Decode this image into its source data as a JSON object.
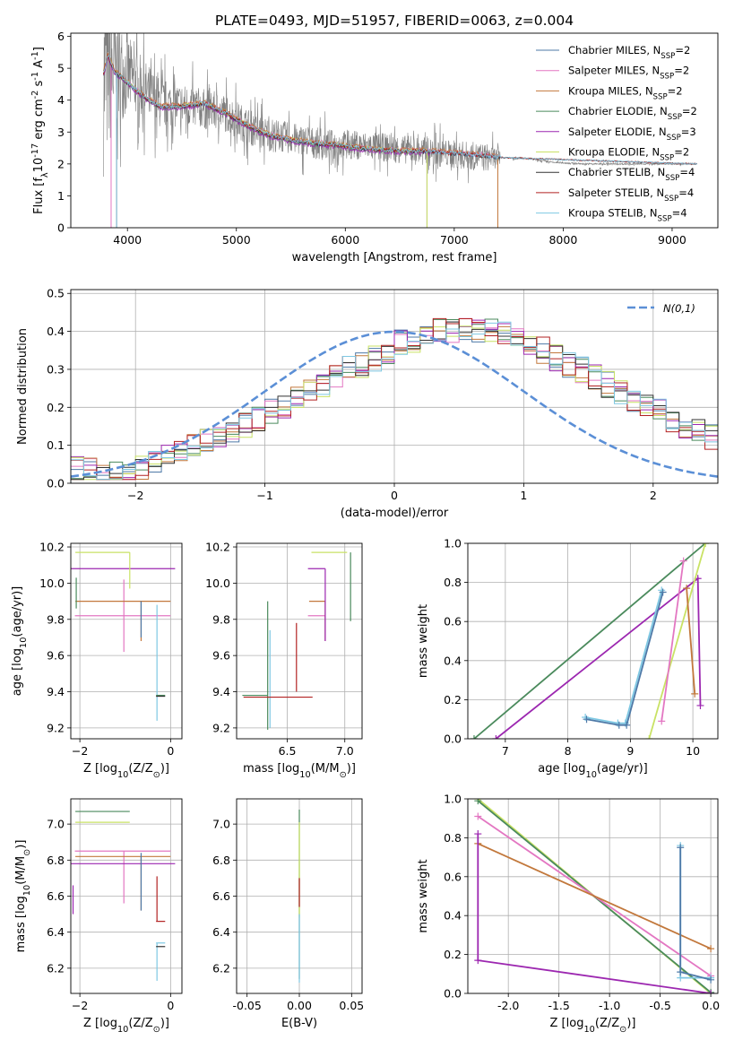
{
  "figure": {
    "title": "PLATE=0493, MJD=51957, FIBERID=0063, z=0.004"
  },
  "chart_data": [
    {
      "id": "spectrum",
      "type": "line",
      "title": "PLATE=0493, MJD=51957, FIBERID=0063, z=0.004",
      "xlabel": "wavelength [Angstrom, rest frame]",
      "ylabel": "Flux [f$_\\lambda$10$^{-17}$ erg cm$^{-2}$ s$^{-1}$ A$^{-1}$]",
      "xlim": [
        3480,
        9420
      ],
      "ylim": [
        0,
        6.1
      ],
      "xticks": [
        4000,
        5000,
        6000,
        7000,
        8000,
        9000
      ],
      "yticks": [
        0,
        1,
        2,
        3,
        4,
        5,
        6
      ],
      "grid": false,
      "legend_position": "top-right",
      "data_color": "#808080",
      "data_envelope": {
        "x": [
          3780,
          3850,
          3950,
          4100,
          4300,
          4600,
          4900,
          5200,
          5500,
          5800,
          6100,
          6400,
          6700,
          7000,
          7300,
          7600,
          7900,
          8200,
          8500,
          8800,
          9100,
          9230
        ],
        "y": [
          4.6,
          4.9,
          4.9,
          4.5,
          3.9,
          3.8,
          3.6,
          3.0,
          2.8,
          2.6,
          2.6,
          2.5,
          2.4,
          2.3,
          2.2,
          2.2,
          2.05,
          2.0,
          2.0,
          2.0,
          2.0,
          2.0
        ],
        "noise_amplitude": [
          6.0,
          4.5,
          3.0,
          2.0,
          1.6,
          1.3,
          1.2,
          1.1,
          1.0,
          1.0,
          0.9,
          0.9,
          0.9,
          0.9,
          0.9,
          0.05,
          0.05,
          0.05,
          0.05,
          0.05,
          0.05,
          0.05
        ],
        "split_at": 7420
      },
      "model_envelope": {
        "x": [
          3780,
          3820,
          3880,
          3950,
          4050,
          4150,
          4300,
          4500,
          4700,
          4900,
          5100,
          5300,
          5500,
          5700,
          5900,
          6100,
          6300,
          6500,
          6700,
          6900,
          7100,
          7300,
          7400
        ],
        "y": [
          4.8,
          5.4,
          4.9,
          4.7,
          4.4,
          4.1,
          3.8,
          3.8,
          3.9,
          3.6,
          3.2,
          2.9,
          2.75,
          2.65,
          2.6,
          2.5,
          2.45,
          2.4,
          2.4,
          2.35,
          2.3,
          2.25,
          2.2
        ]
      },
      "series": [
        {
          "name": "Chabrier MILES, N$_{SSP}$=2",
          "color": "#4e79a7",
          "offset": 0.0,
          "cutoff": 3900,
          "xmax": 7410
        },
        {
          "name": "Salpeter MILES, N$_{SSP}$=2",
          "color": "#e377c2",
          "offset": 0.04,
          "cutoff": 3850,
          "xmax": 7410
        },
        {
          "name": "Kroupa MILES, N$_{SSP}$=2",
          "color": "#c2783c",
          "offset": 0.06,
          "cutoff": 7400,
          "xmax": 7410
        },
        {
          "name": "Chabrier ELODIE, N$_{SSP}$=2",
          "color": "#4a8a5c",
          "offset": -0.03,
          "cutoff": 6750,
          "xmax": 6780
        },
        {
          "name": "Salpeter ELODIE, N$_{SSP}$=3",
          "color": "#9c27b0",
          "offset": -0.06,
          "cutoff": 6750,
          "xmax": 6780
        },
        {
          "name": "Kroupa ELODIE, N$_{SSP}$=2",
          "color": "#c9e265",
          "offset": 0.02,
          "cutoff": 6750,
          "xmax": 6780
        },
        {
          "name": "Chabrier STELIB, N$_{SSP}$=4",
          "color": "#333333",
          "offset": 0.0,
          "cutoff": 3900,
          "xmax": 9230
        },
        {
          "name": "Salpeter STELIB, N$_{SSP}$=4",
          "color": "#b22222",
          "offset": 0.01,
          "cutoff": 3900,
          "xmax": 9230
        },
        {
          "name": "Kroupa STELIB, N$_{SSP}$=4",
          "color": "#7ec8e3",
          "offset": 0.02,
          "cutoff": 3900,
          "xmax": 9230
        }
      ]
    },
    {
      "id": "residuals",
      "type": "histogram",
      "xlabel": "(data-model)/error",
      "ylabel": "Normed distribution",
      "xlim": [
        -2.5,
        2.5
      ],
      "ylim": [
        0,
        0.51
      ],
      "xticks": [
        -2,
        -1,
        0,
        1,
        2
      ],
      "yticks": [
        0.0,
        0.1,
        0.2,
        0.3,
        0.4,
        0.5
      ],
      "grid": true,
      "legend_position": "top-right",
      "gaussian": {
        "name": "$\\mathcal{N}(0,1)$",
        "mean": 0,
        "sigma": 1,
        "color": "#5b8fd6"
      },
      "bin_width": 0.1,
      "bin_start": -2.5,
      "base_counts": [
        0.04,
        0.04,
        0.03,
        0.03,
        0.03,
        0.04,
        0.05,
        0.07,
        0.09,
        0.1,
        0.11,
        0.12,
        0.14,
        0.15,
        0.17,
        0.19,
        0.2,
        0.22,
        0.24,
        0.26,
        0.28,
        0.3,
        0.31,
        0.33,
        0.35,
        0.37,
        0.38,
        0.39,
        0.4,
        0.4,
        0.4,
        0.4,
        0.4,
        0.39,
        0.38,
        0.37,
        0.35,
        0.33,
        0.31,
        0.3,
        0.28,
        0.26,
        0.24,
        0.22,
        0.2,
        0.19,
        0.17,
        0.15,
        0.14,
        0.12
      ]
    },
    {
      "id": "age-vs-z",
      "type": "errorbar",
      "xlabel": "Z [log$_{10}$(Z/Z$_\\odot$)]",
      "ylabel": "age  [log$_{10}$(age/yr)]",
      "xlim": [
        -2.2,
        0.25
      ],
      "ylim": [
        9.14,
        10.22
      ],
      "xticks": [
        -2,
        0
      ],
      "yticks": [
        9.2,
        9.4,
        9.6,
        9.8,
        10.0,
        10.2
      ],
      "grid": true,
      "points": [
        {
          "x": -1.03,
          "y": 9.82,
          "xerr": [
            1.08,
            1.03
          ],
          "yerr": [
            0.2,
            0.2
          ],
          "color": "#e377c2"
        },
        {
          "x": -0.65,
          "y": 9.9,
          "xerr": [
            1.45,
            0.65
          ],
          "yerr": [
            0.22,
            0.0
          ],
          "color": "#c2783c"
        },
        {
          "x": -0.65,
          "y": 9.88,
          "xerr": [
            0.0,
            0.0
          ],
          "yerr": [
            0.18,
            0.02
          ],
          "color": "#4e79a7"
        },
        {
          "x": -0.3,
          "y": 9.88,
          "xerr": [
            0.0,
            0.0
          ],
          "yerr": [
            0.64,
            0.0
          ],
          "color": "#7ec8e3"
        },
        {
          "x": -0.1,
          "y": 10.08,
          "xerr": [
            2.1,
            0.2
          ],
          "yerr": [
            0.0,
            0.0
          ],
          "color": "#9c27b0"
        },
        {
          "x": -0.9,
          "y": 10.17,
          "xerr": [
            1.2,
            0.0
          ],
          "yerr": [
            0.2,
            0.0
          ],
          "color": "#c9e265"
        },
        {
          "x": -0.12,
          "y": 9.38,
          "xerr": [
            0.2,
            0.0
          ],
          "yerr": [
            0.0,
            0.0
          ],
          "color": "#4a8a5c"
        },
        {
          "x": -0.12,
          "y": 9.375,
          "xerr": [
            0.2,
            0.0
          ],
          "yerr": [
            0.0,
            0.0
          ],
          "color": "#333333"
        },
        {
          "x": -2.08,
          "y": 9.88,
          "xerr": [
            0.0,
            0.0
          ],
          "yerr": [
            0.02,
            0.15
          ],
          "color": "#4a8a5c"
        }
      ]
    },
    {
      "id": "age-vs-mass",
      "type": "errorbar",
      "xlabel": "mass [log$_{10}$(M/M$_\\odot$)]",
      "ylabel": "",
      "xlim": [
        6.06,
        7.15
      ],
      "ylim": [
        9.14,
        10.22
      ],
      "xticks": [
        6.5,
        7.0
      ],
      "yticks": [
        9.2,
        9.4,
        9.6,
        9.8,
        10.0,
        10.2
      ],
      "grid": true,
      "points": [
        {
          "x": 6.33,
          "y": 9.38,
          "xerr": [
            0.22,
            0.0
          ],
          "yerr": [
            0.19,
            0.52
          ],
          "color": "#4a8a5c"
        },
        {
          "x": 6.35,
          "y": 9.38,
          "xerr": [
            0.0,
            0.0
          ],
          "yerr": [
            0.18,
            0.36
          ],
          "color": "#7ec8e3"
        },
        {
          "x": 6.4,
          "y": 9.37,
          "xerr": [
            0.28,
            0.32
          ],
          "yerr": [
            0.0,
            0.0
          ],
          "color": "#b22222"
        },
        {
          "x": 6.58,
          "y": 9.6,
          "xerr": [
            0.0,
            0.0
          ],
          "yerr": [
            0.2,
            0.18
          ],
          "color": "#b22222"
        },
        {
          "x": 6.83,
          "y": 9.82,
          "xerr": [
            0.15,
            0.0
          ],
          "yerr": [
            0.14,
            0.0
          ],
          "color": "#e377c2"
        },
        {
          "x": 6.83,
          "y": 9.9,
          "xerr": [
            0.14,
            0.0
          ],
          "yerr": [
            0.22,
            0.0
          ],
          "color": "#c2783c"
        },
        {
          "x": 6.83,
          "y": 10.08,
          "xerr": [
            0.15,
            0.0
          ],
          "yerr": [
            0.4,
            0.0
          ],
          "color": "#9c27b0"
        },
        {
          "x": 7.02,
          "y": 10.17,
          "xerr": [
            0.31,
            0.0
          ],
          "yerr": [
            0.0,
            0.0
          ],
          "color": "#c9e265"
        },
        {
          "x": 7.05,
          "y": 10.17,
          "xerr": [
            0.0,
            0.0
          ],
          "yerr": [
            0.38,
            0.0
          ],
          "color": "#4a8a5c"
        }
      ]
    },
    {
      "id": "weight-vs-age",
      "type": "line",
      "xlabel": "age  [log$_{10}$(age/yr)]",
      "ylabel": "mass weight",
      "xlim": [
        6.4,
        10.4
      ],
      "ylim": [
        0,
        1.0
      ],
      "xticks": [
        7,
        8,
        9,
        10
      ],
      "yticks": [
        0.0,
        0.2,
        0.4,
        0.6,
        0.8,
        1.0
      ],
      "grid": true,
      "series": [
        {
          "color": "#4a8a5c",
          "x": [
            6.5,
            10.2
          ],
          "y": [
            0.0,
            1.0
          ]
        },
        {
          "color": "#9c27b0",
          "x": [
            6.85,
            10.08,
            10.12
          ],
          "y": [
            0.0,
            0.82,
            0.17
          ]
        },
        {
          "color": "#c9e265",
          "x": [
            9.3,
            10.2
          ],
          "y": [
            0.0,
            1.0
          ]
        },
        {
          "color": "#e377c2",
          "x": [
            9.5,
            9.85
          ],
          "y": [
            0.09,
            0.91
          ]
        },
        {
          "color": "#c2783c",
          "x": [
            9.9,
            10.03
          ],
          "y": [
            0.77,
            0.23
          ]
        },
        {
          "color": "#7ec8e3",
          "x": [
            8.28,
            8.8,
            8.92,
            9.5
          ],
          "y": [
            0.11,
            0.08,
            0.08,
            0.76
          ]
        },
        {
          "color": "#4e79a7",
          "x": [
            8.3,
            8.82,
            8.94,
            9.52
          ],
          "y": [
            0.1,
            0.07,
            0.07,
            0.75
          ]
        }
      ]
    },
    {
      "id": "mass-vs-z",
      "type": "errorbar",
      "xlabel": "Z [log$_{10}$(Z/Z$_\\odot$)]",
      "ylabel": "mass [log$_{10}$(M/M$_\\odot$)]",
      "xlim": [
        -2.2,
        0.25
      ],
      "ylim": [
        6.06,
        7.14
      ],
      "xticks": [
        -2,
        0
      ],
      "yticks": [
        6.2,
        6.4,
        6.6,
        6.8,
        7.0
      ],
      "grid": true,
      "points": [
        {
          "x": -0.9,
          "y": 7.07,
          "xerr": [
            1.2,
            0.0
          ],
          "yerr": [
            0.0,
            0.0
          ],
          "color": "#4a8a5c"
        },
        {
          "x": -0.9,
          "y": 7.01,
          "xerr": [
            1.2,
            0.0
          ],
          "yerr": [
            0.0,
            0.0
          ],
          "color": "#c9e265"
        },
        {
          "x": -1.03,
          "y": 6.85,
          "xerr": [
            1.08,
            1.03
          ],
          "yerr": [
            0.29,
            0.0
          ],
          "color": "#e377c2"
        },
        {
          "x": -0.65,
          "y": 6.82,
          "xerr": [
            1.45,
            0.65
          ],
          "yerr": [
            0.3,
            0.0
          ],
          "color": "#c2783c"
        },
        {
          "x": -0.1,
          "y": 6.78,
          "xerr": [
            2.1,
            0.2
          ],
          "yerr": [
            0.0,
            0.0
          ],
          "color": "#9c27b0"
        },
        {
          "x": -0.65,
          "y": 6.84,
          "xerr": [
            0.0,
            0.0
          ],
          "yerr": [
            0.32,
            0.0
          ],
          "color": "#4e79a7"
        },
        {
          "x": -2.15,
          "y": 6.58,
          "xerr": [
            0.0,
            0.0
          ],
          "yerr": [
            0.08,
            0.08
          ],
          "color": "#9c27b0"
        },
        {
          "x": -0.3,
          "y": 6.6,
          "xerr": [
            0.0,
            0.0
          ],
          "yerr": [
            0.14,
            0.11
          ],
          "color": "#b22222"
        },
        {
          "x": -0.12,
          "y": 6.46,
          "xerr": [
            0.2,
            0.0
          ],
          "yerr": [
            0.0,
            0.0
          ],
          "color": "#b22222"
        },
        {
          "x": -0.3,
          "y": 6.33,
          "xerr": [
            0.0,
            0.0
          ],
          "yerr": [
            0.2,
            0.01
          ],
          "color": "#7ec8e3"
        },
        {
          "x": -0.12,
          "y": 6.32,
          "xerr": [
            0.2,
            0.0
          ],
          "yerr": [
            0.0,
            0.0
          ],
          "color": "#333333"
        },
        {
          "x": -0.12,
          "y": 6.34,
          "xerr": [
            0.2,
            0.0
          ],
          "yerr": [
            0.0,
            0.0
          ],
          "color": "#7ec8e3"
        }
      ]
    },
    {
      "id": "mass-vs-ebv",
      "type": "errorbar",
      "xlabel": "E(B-V)",
      "ylabel": "",
      "xlim": [
        -0.06,
        0.06
      ],
      "ylim": [
        6.06,
        7.14
      ],
      "xticks": [
        -0.05,
        0.0,
        0.05
      ],
      "yticks": [
        6.2,
        6.4,
        6.6,
        6.8,
        7.0
      ],
      "grid": true,
      "points": [
        {
          "x": 0.0,
          "y": 6.6,
          "xerr": [
            0.0,
            0.0
          ],
          "yerr": [
            0.46,
            0.48
          ],
          "color": "#4a8a5c"
        },
        {
          "x": 0.0,
          "y": 6.7,
          "xerr": [
            0.0,
            0.0
          ],
          "yerr": [
            0.22,
            0.31
          ],
          "color": "#c9e265"
        },
        {
          "x": 0.0,
          "y": 6.62,
          "xerr": [
            0.0,
            0.0
          ],
          "yerr": [
            0.08,
            0.08
          ],
          "color": "#b22222"
        },
        {
          "x": 0.0,
          "y": 6.5,
          "xerr": [
            0.0,
            0.0
          ],
          "yerr": [
            0.38,
            0.0
          ],
          "color": "#7ec8e3"
        }
      ]
    },
    {
      "id": "weight-vs-z",
      "type": "line",
      "xlabel": "Z [log$_{10}$(Z/Z$_\\odot$)]",
      "ylabel": "mass weight",
      "xlim": [
        -2.4,
        0.07
      ],
      "ylim": [
        0,
        1.0
      ],
      "xticks": [
        -2.0,
        -1.5,
        -1.0,
        -0.5,
        0.0
      ],
      "yticks": [
        0.0,
        0.2,
        0.4,
        0.6,
        0.8,
        1.0
      ],
      "grid": true,
      "series": [
        {
          "color": "#c9e265",
          "x": [
            -2.3,
            0.0
          ],
          "y": [
            1.0,
            0.0
          ]
        },
        {
          "color": "#4a8a5c",
          "x": [
            -2.3,
            0.0
          ],
          "y": [
            0.99,
            0.005
          ]
        },
        {
          "color": "#e377c2",
          "x": [
            -2.3,
            0.0
          ],
          "y": [
            0.91,
            0.09
          ]
        },
        {
          "color": "#c2783c",
          "x": [
            -2.3,
            0.0
          ],
          "y": [
            0.77,
            0.23
          ]
        },
        {
          "color": "#9c27b0",
          "x": [
            -2.3,
            -2.3,
            0.0
          ],
          "y": [
            0.82,
            0.17,
            0.0
          ]
        },
        {
          "color": "#7ec8e3",
          "x": [
            -0.3,
            -0.3,
            0.0
          ],
          "y": [
            0.76,
            0.08,
            0.08
          ]
        },
        {
          "color": "#4e79a7",
          "x": [
            -0.3,
            -0.3,
            0.0
          ],
          "y": [
            0.75,
            0.11,
            0.07
          ]
        }
      ]
    }
  ]
}
